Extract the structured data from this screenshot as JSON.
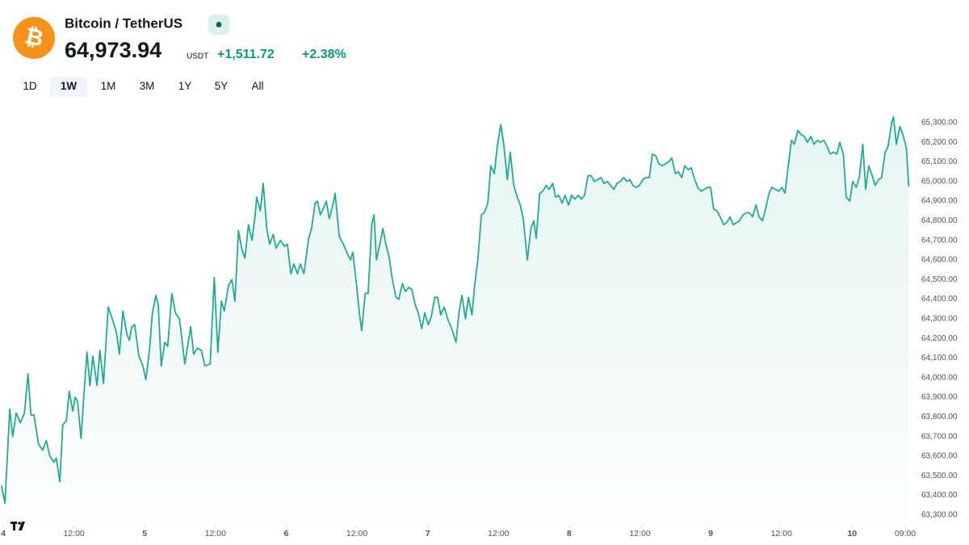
{
  "header": {
    "title": "Bitcoin / TetherUS",
    "price": "64,973.94",
    "currency": "USDT",
    "change": "+1,511.72",
    "change_percent": "+2.38%"
  },
  "ranges": [
    "1D",
    "1W",
    "1M",
    "3M",
    "1Y",
    "5Y",
    "All"
  ],
  "selected_range": 1,
  "chart_data": {
    "type": "area",
    "color": "#22ab94",
    "xlim": [
      -0.55,
      155.6
    ],
    "ylim": [
      63250,
      65390
    ],
    "xticks": [
      {
        "value": 0,
        "label": "4"
      },
      {
        "value": 12,
        "label": "12:00"
      },
      {
        "value": 24,
        "label": "5"
      },
      {
        "value": 36,
        "label": "12:00"
      },
      {
        "value": 48,
        "label": "6"
      },
      {
        "value": 60,
        "label": "12:00"
      },
      {
        "value": 72,
        "label": "7"
      },
      {
        "value": 84,
        "label": "12:00"
      },
      {
        "value": 96,
        "label": "8"
      },
      {
        "value": 108,
        "label": "12:00"
      },
      {
        "value": 120,
        "label": "9"
      },
      {
        "value": 132,
        "label": "12:00"
      },
      {
        "value": 144,
        "label": "10"
      },
      {
        "value": 153,
        "label": "09:00"
      }
    ],
    "yticks": [
      {
        "value": 63300,
        "label": "63,300.00"
      },
      {
        "value": 63400,
        "label": "63,400.00"
      },
      {
        "value": 63500,
        "label": "63,500.00"
      },
      {
        "value": 63600,
        "label": "63,600.00"
      },
      {
        "value": 63700,
        "label": "63,700.00"
      },
      {
        "value": 63800,
        "label": "63,800.00"
      },
      {
        "value": 63900,
        "label": "63,900.00"
      },
      {
        "value": 64000,
        "label": "64,000.00"
      },
      {
        "value": 64100,
        "label": "64,100.00"
      },
      {
        "value": 64200,
        "label": "64,200.00"
      },
      {
        "value": 64300,
        "label": "64,300.00"
      },
      {
        "value": 64400,
        "label": "64,400.00"
      },
      {
        "value": 64500,
        "label": "64,500.00"
      },
      {
        "value": 64600,
        "label": "64,600.00"
      },
      {
        "value": 64700,
        "label": "64,700.00"
      },
      {
        "value": 64800,
        "label": "64,800.00"
      },
      {
        "value": 64900,
        "label": "64,900.00"
      },
      {
        "value": 65000,
        "label": "65,000.00"
      },
      {
        "value": 65100,
        "label": "65,100.00"
      },
      {
        "value": 65200,
        "label": "65,200.00"
      },
      {
        "value": 65300,
        "label": "65,300.00"
      }
    ],
    "x": [
      -0.3,
      0.3,
      1.1,
      1.6,
      2.2,
      2.9,
      3.6,
      4.2,
      4.7,
      5.2,
      6.0,
      6.7,
      7.3,
      7.9,
      8.6,
      9.0,
      9.6,
      10.1,
      10.7,
      11.2,
      11.8,
      12.2,
      12.6,
      13.2,
      13.7,
      14.2,
      14.7,
      15.2,
      15.9,
      16.4,
      17.0,
      17.8,
      18.6,
      19.2,
      19.7,
      20.3,
      21.0,
      21.4,
      21.8,
      22.3,
      23.0,
      23.7,
      24.2,
      24.8,
      25.3,
      25.9,
      26.3,
      26.8,
      27.4,
      27.9,
      28.6,
      29.2,
      29.9,
      30.8,
      31.8,
      32.3,
      32.9,
      33.6,
      34.2,
      35.1,
      35.8,
      36.4,
      37.0,
      37.5,
      38.2,
      38.8,
      39.3,
      39.9,
      40.5,
      41.0,
      41.6,
      42.2,
      42.7,
      43.0,
      43.6,
      44.1,
      44.7,
      45.2,
      45.8,
      46.3,
      47.0,
      47.7,
      48.2,
      48.8,
      49.3,
      49.9,
      50.4,
      51.0,
      51.8,
      52.3,
      52.9,
      53.3,
      53.8,
      54.4,
      54.8,
      55.3,
      55.9,
      56.3,
      57.0,
      57.7,
      58.4,
      58.9,
      59.3,
      59.9,
      60.4,
      60.8,
      61.4,
      61.9,
      62.5,
      62.9,
      63.3,
      63.8,
      64.4,
      64.9,
      65.5,
      65.9,
      66.6,
      67.1,
      67.7,
      68.2,
      68.8,
      69.3,
      69.9,
      70.4,
      71.0,
      71.5,
      72.1,
      72.6,
      73.2,
      73.7,
      74.2,
      74.8,
      75.5,
      76.2,
      76.8,
      77.3,
      77.8,
      78.4,
      78.9,
      79.5,
      80.0,
      80.5,
      81.1,
      81.6,
      82.2,
      82.7,
      83.3,
      83.8,
      84.4,
      84.9,
      85.5,
      86.0,
      86.6,
      87.1,
      87.7,
      88.2,
      88.9,
      89.5,
      90.0,
      90.4,
      91.0,
      91.5,
      92.1,
      92.6,
      93.2,
      93.7,
      94.2,
      94.8,
      95.3,
      95.9,
      96.4,
      97.0,
      97.5,
      98.1,
      98.6,
      99.2,
      99.7,
      100.3,
      100.8,
      101.4,
      101.9,
      102.5,
      103.0,
      103.6,
      104.1,
      104.7,
      105.2,
      105.8,
      106.3,
      106.8,
      107.4,
      107.9,
      108.5,
      109.0,
      109.6,
      110.1,
      110.7,
      111.2,
      111.8,
      112.3,
      112.9,
      113.4,
      114.0,
      114.5,
      115.1,
      115.6,
      116.2,
      116.7,
      117.3,
      117.8,
      118.4,
      118.9,
      119.5,
      120.0,
      120.5,
      121.1,
      121.6,
      122.2,
      122.7,
      123.3,
      123.8,
      124.4,
      124.9,
      125.5,
      126.0,
      126.6,
      127.1,
      127.7,
      128.2,
      128.8,
      129.3,
      129.9,
      130.4,
      131.0,
      131.5,
      132.1,
      132.6,
      133.2,
      133.7,
      134.2,
      134.8,
      135.3,
      135.9,
      136.4,
      137.0,
      137.5,
      138.1,
      138.6,
      139.2,
      139.7,
      140.3,
      140.8,
      141.4,
      141.9,
      142.5,
      143.0,
      143.6,
      144.1,
      144.7,
      145.2,
      145.8,
      146.3,
      146.8,
      147.4,
      147.9,
      148.5,
      149.0,
      149.6,
      150.1,
      150.7,
      151.0,
      151.5,
      152.1,
      152.6,
      153.2,
      153.6
    ],
    "values": [
      63450,
      63360,
      63840,
      63700,
      63820,
      63770,
      63820,
      64020,
      63810,
      63810,
      63660,
      63630,
      63680,
      63600,
      63570,
      63590,
      63470,
      63760,
      63780,
      63930,
      63830,
      63900,
      63880,
      63690,
      63920,
      64130,
      63960,
      64110,
      63960,
      64140,
      63970,
      64360,
      64290,
      64230,
      64120,
      64340,
      64220,
      64190,
      64260,
      64270,
      64110,
      64060,
      63990,
      64140,
      64330,
      64420,
      64370,
      64060,
      64180,
      64160,
      64430,
      64330,
      64300,
      64070,
      64260,
      64120,
      64150,
      64140,
      64060,
      64070,
      64510,
      64130,
      64390,
      64340,
      64470,
      64500,
      64390,
      64750,
      64650,
      64610,
      64780,
      64700,
      64820,
      64920,
      64850,
      64990,
      64760,
      64680,
      64730,
      64660,
      64700,
      64670,
      64680,
      64530,
      64580,
      64530,
      64580,
      64530,
      64710,
      64760,
      64890,
      64900,
      64830,
      64870,
      64900,
      64810,
      64880,
      64940,
      64720,
      64680,
      64630,
      64600,
      64640,
      64480,
      64330,
      64240,
      64430,
      64430,
      64780,
      64830,
      64600,
      64670,
      64760,
      64680,
      64610,
      64520,
      64410,
      64400,
      64480,
      64440,
      64460,
      64450,
      64370,
      64330,
      64250,
      64330,
      64270,
      64310,
      64410,
      64410,
      64320,
      64360,
      64290,
      64240,
      64180,
      64330,
      64420,
      64300,
      64410,
      64320,
      64480,
      64600,
      64830,
      64840,
      64890,
      65080,
      65040,
      65180,
      65290,
      65190,
      65010,
      65150,
      64980,
      64930,
      64880,
      64810,
      64600,
      64760,
      64800,
      64710,
      64940,
      64950,
      64980,
      64960,
      64990,
      64920,
      64930,
      64890,
      64930,
      64880,
      64930,
      64910,
      64930,
      64910,
      64930,
      65030,
      65030,
      65000,
      65010,
      65020,
      64990,
      65000,
      64980,
      64960,
      64990,
      65000,
      65020,
      65000,
      65010,
      64980,
      64970,
      64980,
      65010,
      65020,
      65020,
      65140,
      65130,
      65090,
      65080,
      65090,
      65100,
      65120,
      65040,
      65050,
      65020,
      65080,
      65060,
      65070,
      65010,
      64970,
      64950,
      64960,
      64970,
      64970,
      64860,
      64850,
      64820,
      64780,
      64790,
      64820,
      64780,
      64790,
      64800,
      64830,
      64840,
      64840,
      64820,
      64880,
      64820,
      64800,
      64860,
      64940,
      64970,
      64960,
      64950,
      64970,
      64940,
      65090,
      65210,
      65190,
      65260,
      65240,
      65230,
      65200,
      65230,
      65190,
      65210,
      65200,
      65210,
      65180,
      65140,
      65150,
      65140,
      65200,
      65140,
      64920,
      64900,
      65000,
      64970,
      65020,
      65190,
      64960,
      65080,
      65030,
      64980,
      65010,
      65020,
      65150,
      65180,
      65300,
      65330,
      65190,
      65280,
      65240,
      65170,
      64974
    ]
  }
}
